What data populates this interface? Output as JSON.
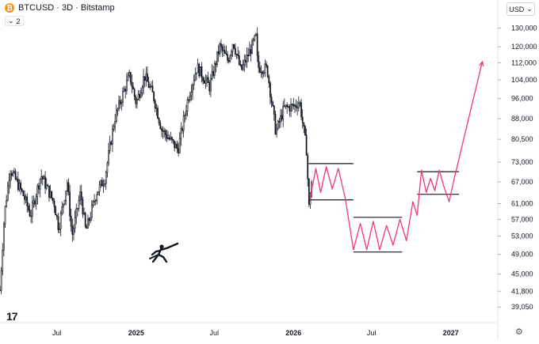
{
  "header": {
    "symbol_badge": "₿",
    "title": "BTCUSD · 3D · Bitstamp",
    "indicator_count": "2",
    "currency": "USD"
  },
  "logo_text": "17",
  "colors": {
    "candle": "#131722",
    "projection": "#f23676",
    "levels": "#131722",
    "grid": "#f0f3fa"
  },
  "icons": {
    "symbol": "bitcoin-icon",
    "legend_toggle": "chevron-down-icon",
    "currency_dropdown": "chevron-down-icon",
    "settings": "gear-icon",
    "character": "fencer-silhouette-icon"
  },
  "chart_data": {
    "type": "candlestick",
    "title": "BTCUSD · 3D · Bitstamp",
    "y_scale": "log",
    "y_range": [
      36500,
      140000
    ],
    "x_range": [
      "2024-02-20",
      "2027-04-20"
    ],
    "y_ticks": [
      130000,
      120000,
      112000,
      104000,
      96000,
      88000,
      80500,
      73000,
      67000,
      61000,
      57000,
      53000,
      49000,
      45000,
      41800,
      39050
    ],
    "y_tick_labels": [
      "130,000",
      "120,000",
      "112,000",
      "104,000",
      "96,000",
      "88,000",
      "80,500",
      "73,000",
      "67,000",
      "61,000",
      "57,000",
      "53,000",
      "49,000",
      "45,000",
      "41,800",
      "39,050"
    ],
    "x_ticks": [
      {
        "label": "Jul",
        "date": "2024-07-01"
      },
      {
        "label": "2025",
        "date": "2025-01-01"
      },
      {
        "label": "Jul",
        "date": "2025-07-01"
      },
      {
        "label": "2026",
        "date": "2026-01-01"
      },
      {
        "label": "Jul",
        "date": "2026-07-01"
      },
      {
        "label": "2027",
        "date": "2027-01-01"
      }
    ],
    "price_path": [
      [
        "2024-02-20",
        42000
      ],
      [
        "2024-03-01",
        58000
      ],
      [
        "2024-03-14",
        71000
      ],
      [
        "2024-04-15",
        63000
      ],
      [
        "2024-05-01",
        58000
      ],
      [
        "2024-05-25",
        69000
      ],
      [
        "2024-06-25",
        61000
      ],
      [
        "2024-07-05",
        55000
      ],
      [
        "2024-07-25",
        67000
      ],
      [
        "2024-08-05",
        53000
      ],
      [
        "2024-08-25",
        64000
      ],
      [
        "2024-09-06",
        54000
      ],
      [
        "2024-10-01",
        64000
      ],
      [
        "2024-10-20",
        68000
      ],
      [
        "2024-11-12",
        88000
      ],
      [
        "2024-12-05",
        100000
      ],
      [
        "2024-12-17",
        106000
      ],
      [
        "2025-01-01",
        94000
      ],
      [
        "2025-01-20",
        106000
      ],
      [
        "2025-02-10",
        97000
      ],
      [
        "2025-03-01",
        84000
      ],
      [
        "2025-04-08",
        77000
      ],
      [
        "2025-05-01",
        96000
      ],
      [
        "2025-05-22",
        110000
      ],
      [
        "2025-06-20",
        101000
      ],
      [
        "2025-07-14",
        120000
      ],
      [
        "2025-08-02",
        113000
      ],
      [
        "2025-08-14",
        123000
      ],
      [
        "2025-09-01",
        108000
      ],
      [
        "2025-10-06",
        125000
      ],
      [
        "2025-10-10",
        110000
      ],
      [
        "2025-11-01",
        109000
      ],
      [
        "2025-11-21",
        83000
      ],
      [
        "2025-12-10",
        92000
      ],
      [
        "2026-01-05",
        93000
      ],
      [
        "2026-01-15",
        95000
      ],
      [
        "2026-01-31",
        77000
      ],
      [
        "2026-02-06",
        60000
      ],
      [
        "2026-02-12",
        67000
      ]
    ],
    "support_resistance_levels": [
      {
        "start": "2026-02-05",
        "end": "2026-05-20",
        "y": 72500
      },
      {
        "start": "2026-02-05",
        "end": "2026-05-20",
        "y": 62000
      },
      {
        "start": "2026-05-20",
        "end": "2026-09-10",
        "y": 57500
      },
      {
        "start": "2026-05-20",
        "end": "2026-09-10",
        "y": 49500
      },
      {
        "start": "2026-10-15",
        "end": "2027-01-20",
        "y": 70000
      },
      {
        "start": "2026-10-15",
        "end": "2027-01-20",
        "y": 63500
      }
    ],
    "projection_path": [
      [
        "2026-02-08",
        62000
      ],
      [
        "2026-02-22",
        71000
      ],
      [
        "2026-03-05",
        64000
      ],
      [
        "2026-03-18",
        71500
      ],
      [
        "2026-04-01",
        65000
      ],
      [
        "2026-04-15",
        71000
      ],
      [
        "2026-05-01",
        62500
      ],
      [
        "2026-05-20",
        50000
      ],
      [
        "2026-06-05",
        56000
      ],
      [
        "2026-06-20",
        50000
      ],
      [
        "2026-07-05",
        56500
      ],
      [
        "2026-07-20",
        50000
      ],
      [
        "2026-08-05",
        55500
      ],
      [
        "2026-08-20",
        51000
      ],
      [
        "2026-09-05",
        57000
      ],
      [
        "2026-09-20",
        52000
      ],
      [
        "2026-10-05",
        61500
      ],
      [
        "2026-10-15",
        58000
      ],
      [
        "2026-10-25",
        70500
      ],
      [
        "2026-11-05",
        64000
      ],
      [
        "2026-11-15",
        68000
      ],
      [
        "2026-11-25",
        64500
      ],
      [
        "2026-12-05",
        70500
      ],
      [
        "2026-12-15",
        66000
      ],
      [
        "2026-12-28",
        61500
      ],
      [
        "2027-01-10",
        68500
      ],
      [
        "2027-03-15",
        112500
      ]
    ],
    "grid": false
  }
}
